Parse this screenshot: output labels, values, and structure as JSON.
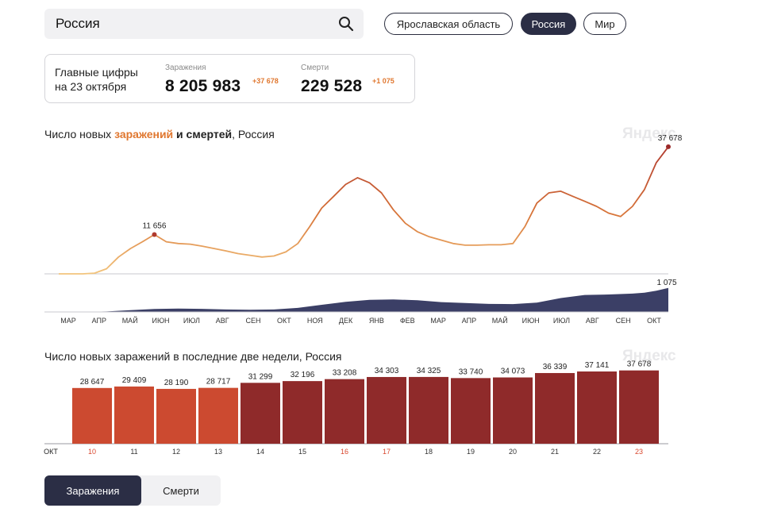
{
  "search": {
    "value": "Россия"
  },
  "regions": [
    {
      "label": "Ярославская область",
      "active": false
    },
    {
      "label": "Россия",
      "active": true
    },
    {
      "label": "Мир",
      "active": false
    }
  ],
  "summary": {
    "title_line1": "Главные цифры",
    "title_line2": "на 23 октября",
    "cases_label": "Заражения",
    "cases_total": "8 205 983",
    "cases_delta": "+37 678",
    "deaths_label": "Смерти",
    "deaths_total": "229 528",
    "deaths_delta": "+1 075"
  },
  "chart1_title": {
    "part1": "Число новых ",
    "part2": "заражений",
    "part3": " и смертей",
    "part4": ", Россия"
  },
  "chart2_title": "Число новых заражений в последние две недели, Россия",
  "brand": "Яндекс",
  "colors": {
    "accent": "#e0772f",
    "dark": "#2b2e45",
    "bar_red": "#8f2a2a",
    "bar_orange": "#cc4a30"
  },
  "chart_data": [
    {
      "type": "line",
      "title": "Число новых заражений и смертей, Россия",
      "x_tick_labels": [
        "МАР",
        "АПР",
        "МАЙ",
        "ИЮН",
        "ИЮЛ",
        "АВГ",
        "СЕН",
        "ОКТ",
        "НОЯ",
        "ДЕК",
        "ЯНВ",
        "ФЕВ",
        "МАР",
        "АПР",
        "МАЙ",
        "ИЮН",
        "ИЮЛ",
        "АВГ",
        "СЕН",
        "ОКТ"
      ],
      "series": [
        {
          "key": "cases",
          "points": [
            [
              0,
              0
            ],
            [
              2,
              0
            ],
            [
              3,
              200
            ],
            [
              4,
              1500
            ],
            [
              5,
              5000
            ],
            [
              6,
              7500
            ],
            [
              7,
              9500
            ],
            [
              8,
              11656
            ],
            [
              9,
              9500
            ],
            [
              10,
              9000
            ],
            [
              11,
              8800
            ],
            [
              12,
              8200
            ],
            [
              13,
              7500
            ],
            [
              14,
              6800
            ],
            [
              15,
              6000
            ],
            [
              16,
              5500
            ],
            [
              17,
              5000
            ],
            [
              18,
              5300
            ],
            [
              19,
              6500
            ],
            [
              20,
              9000
            ],
            [
              21,
              14000
            ],
            [
              22,
              19500
            ],
            [
              23,
              23000
            ],
            [
              24,
              26500
            ],
            [
              25,
              28500
            ],
            [
              26,
              27000
            ],
            [
              27,
              24000
            ],
            [
              28,
              19000
            ],
            [
              29,
              15000
            ],
            [
              30,
              12500
            ],
            [
              31,
              11000
            ],
            [
              32,
              10000
            ],
            [
              33,
              9000
            ],
            [
              34,
              8500
            ],
            [
              35,
              8500
            ],
            [
              36,
              8600
            ],
            [
              37,
              8600
            ],
            [
              38,
              9000
            ],
            [
              39,
              14000
            ],
            [
              40,
              21000
            ],
            [
              41,
              24000
            ],
            [
              42,
              24500
            ],
            [
              43,
              23000
            ],
            [
              44,
              21500
            ],
            [
              45,
              20000
            ],
            [
              46,
              18000
            ],
            [
              47,
              17000
            ],
            [
              48,
              20000
            ],
            [
              49,
              25000
            ],
            [
              50,
              33000
            ],
            [
              51,
              37678
            ]
          ],
          "annotation": {
            "x": 8,
            "y": 11656,
            "label": "11 656"
          },
          "last_label": "37 678"
        },
        {
          "key": "deaths",
          "points": [
            [
              0,
              0
            ],
            [
              2,
              0
            ],
            [
              4,
              20
            ],
            [
              6,
              80
            ],
            [
              8,
              130
            ],
            [
              10,
              150
            ],
            [
              12,
              140
            ],
            [
              14,
              110
            ],
            [
              16,
              100
            ],
            [
              18,
              110
            ],
            [
              20,
              180
            ],
            [
              22,
              320
            ],
            [
              24,
              450
            ],
            [
              26,
              540
            ],
            [
              28,
              560
            ],
            [
              30,
              520
            ],
            [
              32,
              440
            ],
            [
              34,
              400
            ],
            [
              36,
              360
            ],
            [
              38,
              350
            ],
            [
              40,
              420
            ],
            [
              42,
              620
            ],
            [
              44,
              760
            ],
            [
              46,
              780
            ],
            [
              48,
              820
            ],
            [
              49,
              860
            ],
            [
              50,
              950
            ],
            [
              51,
              1075
            ]
          ],
          "last_label": "1 075"
        }
      ],
      "ylim": [
        0,
        40000
      ]
    },
    {
      "type": "bar",
      "title": "Число новых заражений в последние две недели, Россия",
      "month_label": "ОКТ",
      "categories": [
        "10",
        "11",
        "12",
        "13",
        "14",
        "15",
        "16",
        "17",
        "18",
        "19",
        "20",
        "21",
        "22",
        "23"
      ],
      "values": [
        28647,
        29409,
        28190,
        28717,
        31299,
        32196,
        33208,
        34303,
        34325,
        33740,
        34073,
        36339,
        37141,
        37678
      ],
      "value_labels": [
        "28 647",
        "29 409",
        "28 190",
        "28 717",
        "31 299",
        "32 196",
        "33 208",
        "34 303",
        "34 325",
        "33 740",
        "34 073",
        "36 339",
        "37 141",
        "37 678"
      ],
      "weekend": [
        true,
        false,
        false,
        false,
        false,
        false,
        true,
        true,
        false,
        false,
        false,
        false,
        false,
        true
      ],
      "ylim": [
        0,
        40000
      ]
    }
  ],
  "bottom_tabs": [
    {
      "label": "Заражения",
      "active": true
    },
    {
      "label": "Смерти",
      "active": false
    }
  ]
}
